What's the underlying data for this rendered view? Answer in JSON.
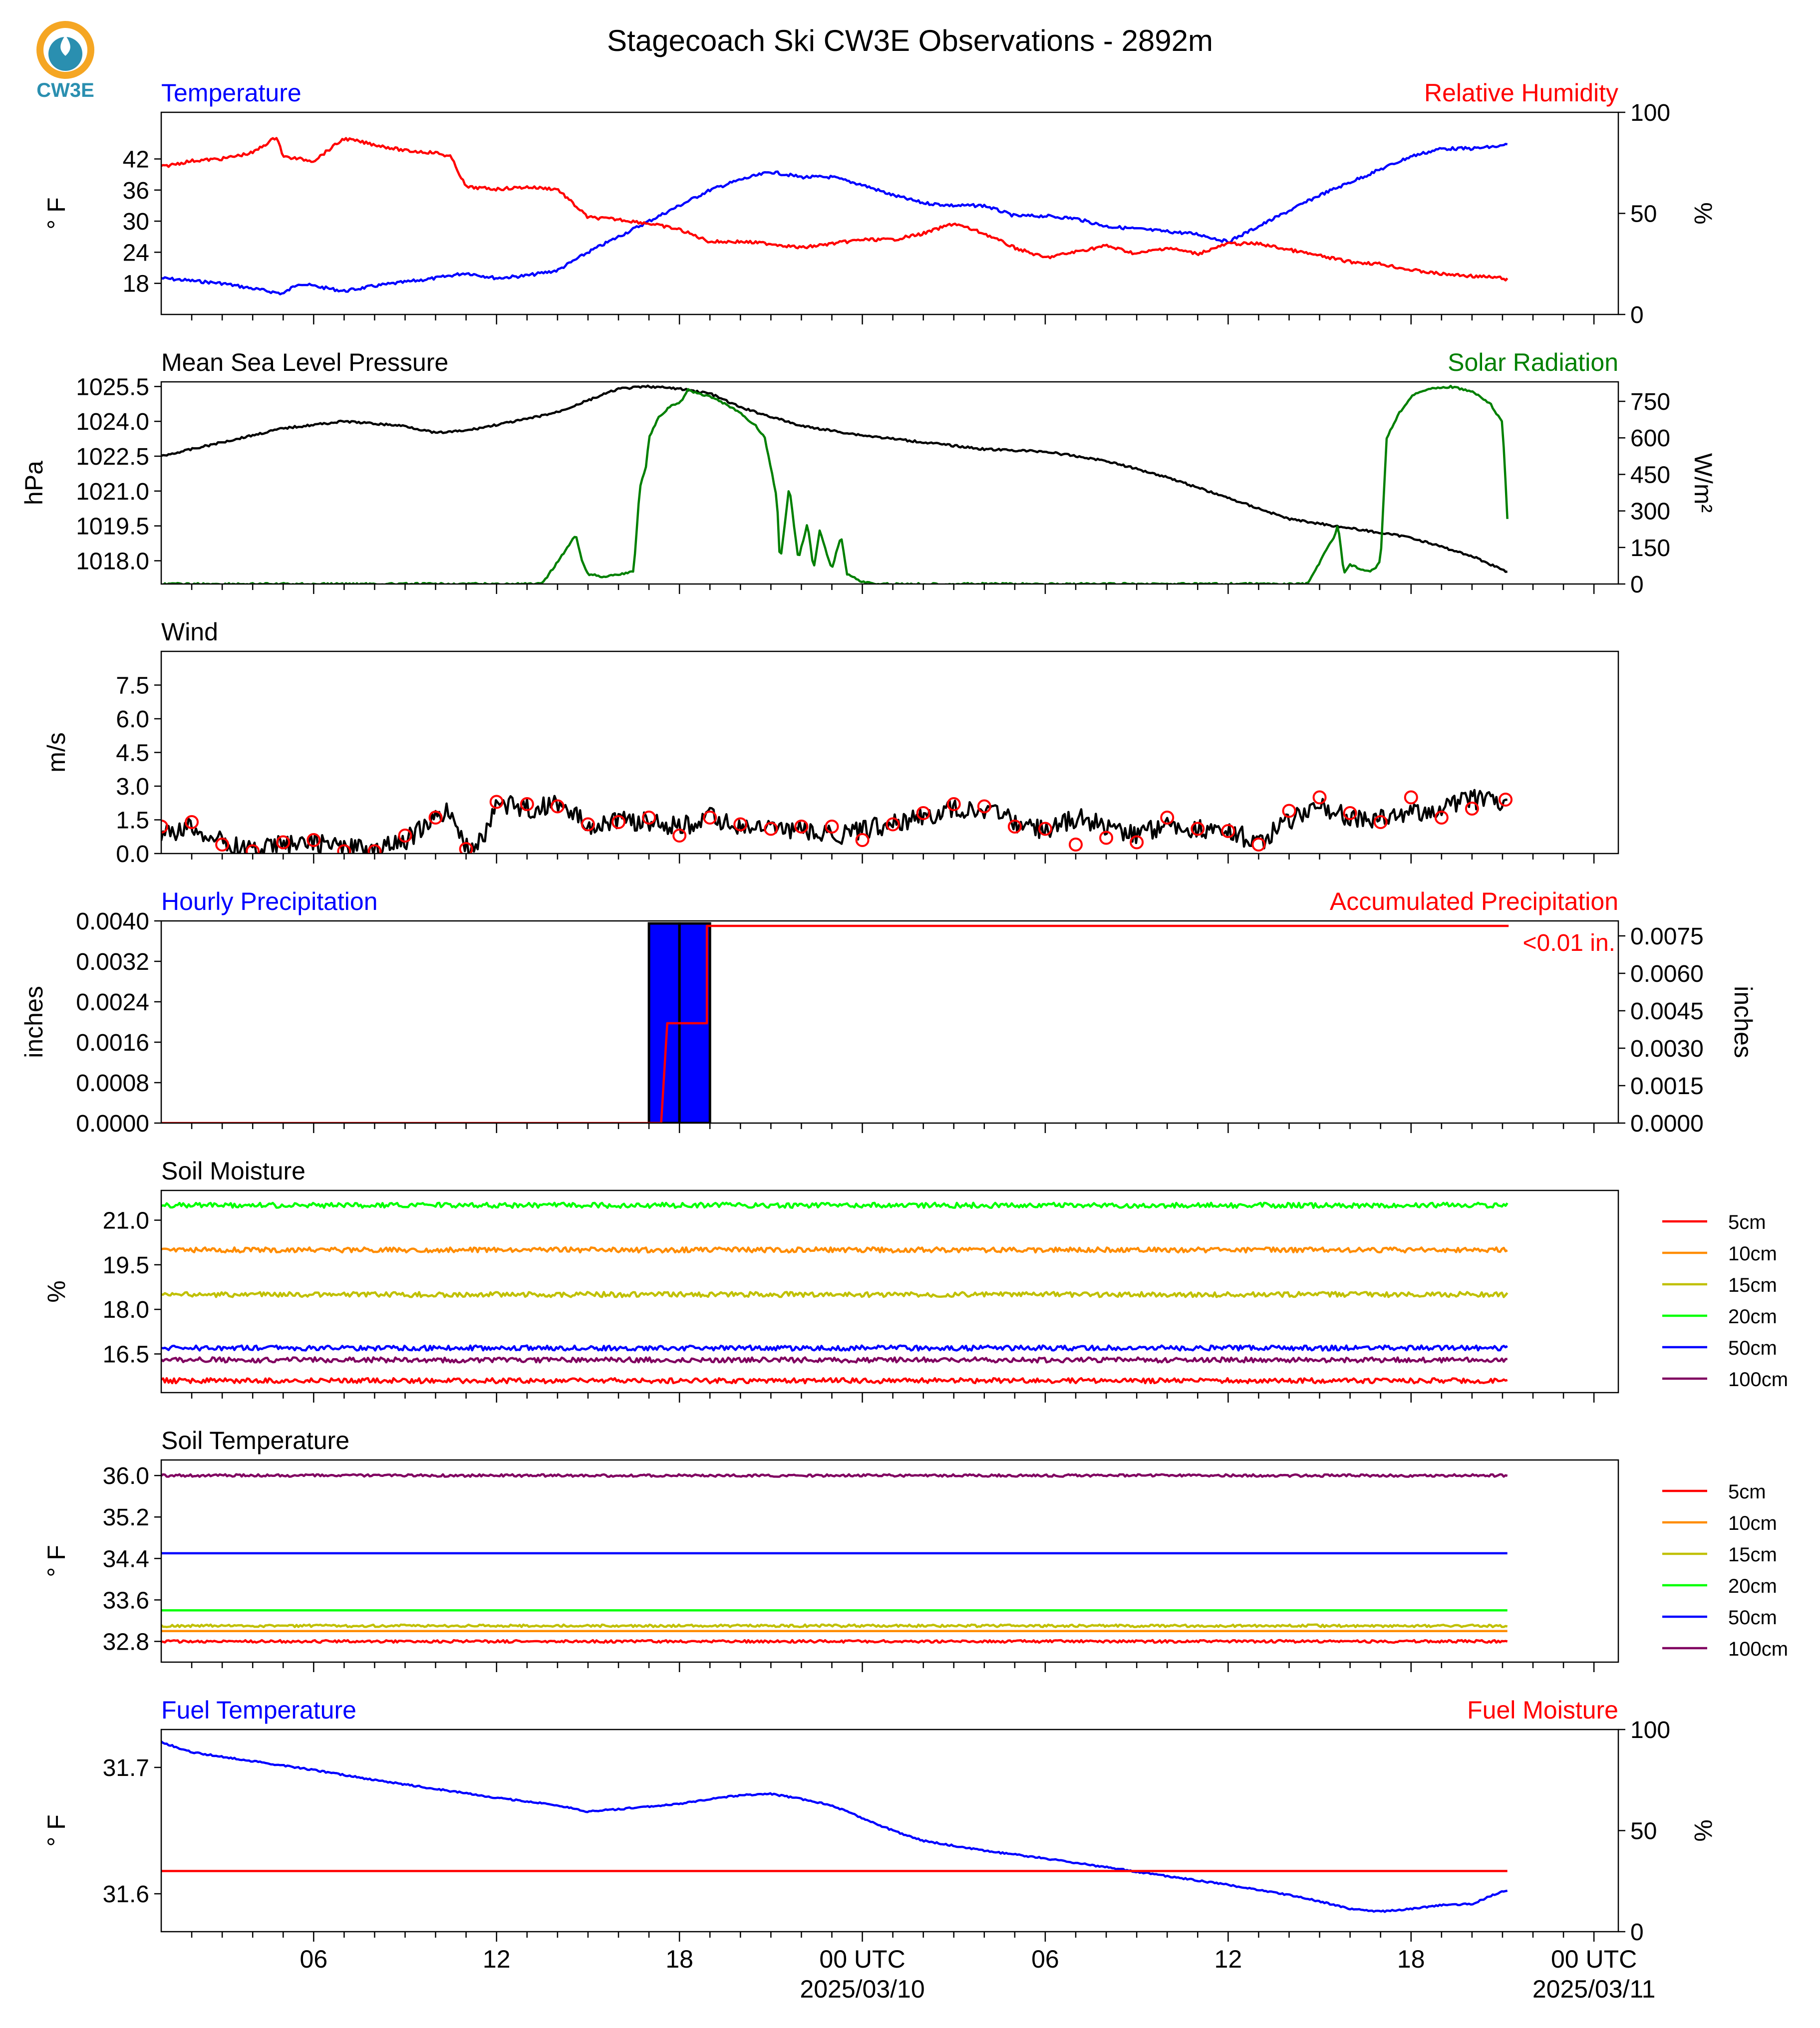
{
  "header": {
    "title": "Stagecoach Ski CW3E Observations - 2892m",
    "logo_text": "CW3E"
  },
  "colors": {
    "temperature": "#0000ff",
    "humidity": "#ff0000",
    "pressure": "#000000",
    "solar": "#008000",
    "wind": "#000000",
    "gust_marker": "#ff0000",
    "precip_bar": "#0000ff",
    "precip_accum": "#ff0000",
    "soil_5cm": "#ff0000",
    "soil_10cm": "#ff8c00",
    "soil_15cm": "#c0c000",
    "soil_20cm": "#00ff00",
    "soil_50cm": "#0000ff",
    "soil_100cm": "#800060",
    "logo": "#2a8fb0",
    "logo_sun": "#f5a623"
  },
  "x_axis": {
    "tick_labels": [
      {
        "hour": 6,
        "label": "06"
      },
      {
        "hour": 12,
        "label": "12"
      },
      {
        "hour": 18,
        "label": "18"
      },
      {
        "hour": 24,
        "label": "00 UTC",
        "sub": "2025/03/10"
      },
      {
        "hour": 30,
        "label": "06"
      },
      {
        "hour": 36,
        "label": "12"
      },
      {
        "hour": 42,
        "label": "18"
      },
      {
        "hour": 48,
        "label": "00 UTC",
        "sub": "2025/03/11"
      }
    ],
    "range_hours": [
      1,
      48.8
    ],
    "data_end_hour": 45.2
  },
  "legend_labels": [
    "5cm",
    "10cm",
    "15cm",
    "20cm",
    "50cm",
    "100cm"
  ],
  "chart_data": [
    {
      "type": "line",
      "title_left": "Temperature",
      "title_right": "Relative Humidity",
      "ylabel": "° F",
      "ylabel_right": "%",
      "ylim": [
        12,
        51
      ],
      "yticks": [
        "18",
        "24",
        "30",
        "36",
        "42"
      ],
      "ylim_right": [
        0,
        100
      ],
      "yticks_right": [
        "0",
        "50",
        "100"
      ],
      "series": [
        {
          "axis": "left",
          "color_key": "temperature",
          "x": [
            1,
            3,
            5,
            5.5,
            7,
            8,
            10,
            11,
            12,
            13,
            14,
            15,
            16,
            17,
            18,
            19,
            20,
            21,
            22,
            23,
            24,
            25,
            26,
            27,
            28,
            29,
            30,
            31,
            32,
            33,
            34,
            35,
            36,
            37,
            38,
            39,
            40,
            41,
            42,
            43,
            44,
            45,
            45.2
          ],
          "y": [
            19,
            18,
            16,
            18,
            16.5,
            17.5,
            19,
            20,
            19,
            19.5,
            20.5,
            24,
            27,
            30,
            33,
            36,
            38,
            39.5,
            38.5,
            38.5,
            37,
            35,
            33.5,
            33,
            33,
            31,
            31,
            30.5,
            29,
            28.5,
            28,
            27.5,
            26,
            29,
            32,
            35,
            37.5,
            40,
            42.5,
            44,
            44,
            44.5,
            45
          ]
        },
        {
          "axis": "right",
          "color_key": "humidity",
          "x": [
            1,
            2,
            3,
            4,
            4.8,
            5,
            6,
            7,
            8,
            9,
            10,
            10.5,
            11,
            12,
            13,
            14,
            15,
            16,
            17,
            18,
            19,
            20,
            21,
            22,
            23,
            24,
            25,
            26,
            27,
            28,
            29,
            30,
            31,
            32,
            33,
            34,
            35,
            36,
            37,
            38,
            39,
            40,
            41,
            42,
            43,
            44,
            45,
            45.2
          ],
          "y": [
            73,
            76,
            77,
            80,
            88,
            78,
            76,
            87,
            84,
            81,
            80,
            78,
            63,
            62,
            63,
            62,
            48,
            47,
            45,
            42,
            36,
            36,
            35,
            33,
            35,
            37,
            37,
            40,
            45,
            40,
            33,
            28,
            31,
            34,
            30,
            33,
            30,
            35,
            35,
            32,
            29,
            26,
            25,
            22,
            20,
            19,
            18,
            17
          ]
        }
      ]
    },
    {
      "type": "line",
      "title_left": "Mean Sea Level Pressure",
      "title_right": "Solar Radiation",
      "ylabel": "hPa",
      "ylabel_right": "W/m²",
      "ylim": [
        1017.0,
        1025.7
      ],
      "yticks": [
        "1018.0",
        "1019.5",
        "1021.0",
        "1022.5",
        "1024.0",
        "1025.5"
      ],
      "ylim_right": [
        0,
        830
      ],
      "yticks_right": [
        "0",
        "150",
        "300",
        "450",
        "600",
        "750"
      ],
      "series": [
        {
          "axis": "left",
          "color_key": "pressure",
          "x": [
            1,
            3,
            5,
            7,
            9,
            10,
            11,
            13,
            14,
            15,
            16,
            17,
            18,
            19,
            20,
            21,
            22,
            24,
            26,
            28,
            30,
            32,
            34,
            36,
            38,
            40,
            42,
            44,
            45.2
          ],
          "y": [
            1022.5,
            1023.1,
            1023.7,
            1024.0,
            1023.8,
            1023.5,
            1023.6,
            1024.1,
            1024.4,
            1024.9,
            1025.4,
            1025.5,
            1025.4,
            1025.2,
            1024.6,
            1024.2,
            1023.8,
            1023.4,
            1023.1,
            1022.8,
            1022.7,
            1022.3,
            1021.6,
            1020.7,
            1019.8,
            1019.4,
            1019.0,
            1018.2,
            1017.5
          ]
        },
        {
          "axis": "right",
          "color_key": "solar",
          "x": [
            1,
            13.5,
            14.6,
            14.8,
            15,
            15.5,
            16,
            16.5,
            16.7,
            16.9,
            17,
            17.3,
            17.7,
            18,
            18.3,
            18.6,
            19,
            19.5,
            20,
            20.5,
            20.8,
            21.2,
            21.3,
            21.6,
            21.9,
            22.2,
            22.4,
            22.6,
            23,
            23.3,
            23.5,
            24,
            24.4,
            24.7,
            38.6,
            39.5,
            39.6,
            39.8,
            40,
            40.5,
            40.8,
            41,
            41.2,
            41.6,
            42,
            42.5,
            43.3,
            44,
            44.6,
            45,
            45.1,
            45.2
          ],
          "y": [
            0,
            0,
            200,
            100,
            40,
            30,
            40,
            50,
            400,
            480,
            600,
            680,
            730,
            740,
            800,
            780,
            770,
            740,
            700,
            650,
            600,
            350,
            80,
            400,
            100,
            250,
            60,
            220,
            60,
            200,
            40,
            10,
            0,
            0,
            0,
            200,
            250,
            40,
            80,
            50,
            60,
            100,
            600,
            700,
            770,
            800,
            810,
            790,
            740,
            660,
            420,
            160
          ]
        }
      ]
    },
    {
      "type": "line",
      "title_left": "Wind",
      "ylabel": "m/s",
      "ylim": [
        0,
        9.0
      ],
      "yticks": [
        "0.0",
        "1.5",
        "3.0",
        "4.5",
        "6.0",
        "7.5"
      ],
      "series": [
        {
          "color_key": "wind",
          "x": [
            1,
            2,
            3,
            4,
            5,
            6,
            7,
            8,
            9,
            10,
            10.5,
            11,
            11.5,
            12,
            13,
            14,
            15,
            16,
            17,
            18,
            19,
            20,
            21,
            22,
            23,
            24,
            25,
            26,
            27,
            28,
            29,
            30,
            31,
            32,
            33,
            34,
            35,
            36,
            37,
            38,
            39,
            40,
            41,
            42,
            43,
            44,
            45,
            45.2
          ],
          "y": [
            0.8,
            1.2,
            0.5,
            0.2,
            0.4,
            0.5,
            0.3,
            0.1,
            0.6,
            1.5,
            2.0,
            0.2,
            0.6,
            2.2,
            2.0,
            2.2,
            1.3,
            1.5,
            1.4,
            1.2,
            1.6,
            1.2,
            1.1,
            1.0,
            0.8,
            1.0,
            1.4,
            1.6,
            2.0,
            2.0,
            1.4,
            1.0,
            1.6,
            1.2,
            0.9,
            1.3,
            1.1,
            1.0,
            0.5,
            1.4,
            2.2,
            1.6,
            1.5,
            1.8,
            2.0,
            2.4,
            2.2,
            2.0
          ]
        },
        {
          "color_key": "gust_marker",
          "marker": "circle",
          "x": [
            1,
            2,
            3,
            4,
            5,
            6,
            7,
            8,
            9,
            10,
            11,
            12,
            13,
            14,
            15,
            16,
            17,
            18,
            19,
            20,
            21,
            22,
            23,
            24,
            25,
            26,
            27,
            28,
            29,
            30,
            31,
            32,
            33,
            34,
            35,
            36,
            37,
            38,
            39,
            40,
            41,
            42,
            43,
            44,
            45.1
          ],
          "y": [
            1.2,
            1.4,
            0.4,
            0.1,
            0.5,
            0.6,
            0.1,
            0.1,
            0.8,
            1.6,
            0.2,
            2.3,
            2.2,
            2.1,
            1.3,
            1.4,
            1.6,
            0.8,
            1.6,
            1.3,
            1.1,
            1.2,
            1.2,
            0.6,
            1.3,
            1.8,
            2.2,
            2.1,
            1.2,
            1.1,
            0.4,
            0.7,
            0.5,
            1.6,
            1.1,
            1.0,
            0.4,
            1.9,
            2.5,
            1.8,
            1.4,
            2.5,
            1.6,
            2.0,
            2.4
          ]
        }
      ]
    },
    {
      "type": "bar",
      "title_left": "Hourly Precipitation",
      "title_right": "Accumulated Precipitation",
      "annotation": "<0.01 in.",
      "ylabel": "inches",
      "ylabel_right": "inches",
      "ylim": [
        0,
        0.004
      ],
      "yticks": [
        "0.0000",
        "0.0008",
        "0.0016",
        "0.0024",
        "0.0032",
        "0.0040"
      ],
      "ylim_right": [
        0,
        0.0081
      ],
      "yticks_right": [
        "0.0000",
        "0.0015",
        "0.0030",
        "0.0045",
        "0.0060",
        "0.0075"
      ],
      "bars": [
        {
          "start": 17,
          "end": 18,
          "value": 0.00395
        },
        {
          "start": 18,
          "end": 19,
          "value": 0.00395
        }
      ],
      "series": [
        {
          "axis": "right",
          "color_key": "precip_accum",
          "step": true,
          "x": [
            1,
            17.4,
            17.4,
            17.6,
            17.6,
            18.9,
            18.9,
            45.2
          ],
          "y": [
            0,
            0,
            0.0,
            0.004,
            0.004,
            0.004,
            0.0079,
            0.0079
          ]
        }
      ]
    },
    {
      "type": "line",
      "title_left": "Soil Moisture",
      "ylabel": "%",
      "ylim": [
        15.2,
        22.0
      ],
      "yticks": [
        "16.5",
        "18.0",
        "19.5",
        "21.0"
      ],
      "series": [
        {
          "name": "5cm",
          "color_key": "soil_5cm",
          "x": [
            1,
            45.2
          ],
          "y": [
            15.6,
            15.6
          ]
        },
        {
          "name": "10cm",
          "color_key": "soil_10cm",
          "x": [
            1,
            45.2
          ],
          "y": [
            20.0,
            20.0
          ]
        },
        {
          "name": "15cm",
          "color_key": "soil_15cm",
          "x": [
            1,
            45.2
          ],
          "y": [
            18.5,
            18.5
          ]
        },
        {
          "name": "20cm",
          "color_key": "soil_20cm",
          "x": [
            1,
            45.2
          ],
          "y": [
            21.5,
            21.5
          ]
        },
        {
          "name": "50cm",
          "color_key": "soil_50cm",
          "x": [
            1,
            45.2
          ],
          "y": [
            16.7,
            16.7
          ]
        },
        {
          "name": "100cm",
          "color_key": "soil_100cm",
          "x": [
            1,
            45.2
          ],
          "y": [
            16.3,
            16.3
          ]
        }
      ]
    },
    {
      "type": "line",
      "title_left": "Soil Temperature",
      "ylabel": "° F",
      "ylim": [
        32.4,
        36.3
      ],
      "yticks": [
        "32.8",
        "33.6",
        "34.4",
        "35.2",
        "36.0"
      ],
      "series": [
        {
          "name": "5cm",
          "color_key": "soil_5cm",
          "x": [
            1,
            45.2
          ],
          "y": [
            32.8,
            32.8
          ]
        },
        {
          "name": "10cm",
          "color_key": "soil_10cm",
          "x": [
            1,
            45.2
          ],
          "y": [
            33.0,
            33.0
          ]
        },
        {
          "name": "15cm",
          "color_key": "soil_15cm",
          "x": [
            1,
            45.2
          ],
          "y": [
            33.1,
            33.1
          ]
        },
        {
          "name": "20cm",
          "color_key": "soil_20cm",
          "x": [
            1,
            45.2
          ],
          "y": [
            33.4,
            33.4
          ]
        },
        {
          "name": "50cm",
          "color_key": "soil_50cm",
          "x": [
            1,
            45.2
          ],
          "y": [
            34.5,
            34.5
          ]
        },
        {
          "name": "100cm",
          "color_key": "soil_100cm",
          "x": [
            1,
            45.2
          ],
          "y": [
            36.0,
            36.0
          ]
        }
      ]
    },
    {
      "type": "line",
      "title_left": "Fuel Temperature",
      "title_right": "Fuel Moisture",
      "ylabel": "° F",
      "ylabel_right": "%",
      "ylim": [
        31.57,
        31.73
      ],
      "yticks": [
        "31.6",
        "31.7"
      ],
      "ylim_right": [
        0,
        100
      ],
      "yticks_right": [
        "0",
        "50",
        "100"
      ],
      "series": [
        {
          "axis": "left",
          "color_key": "temperature",
          "x": [
            1,
            2,
            4,
            6,
            8,
            10,
            12,
            14,
            15,
            16,
            18,
            19,
            20,
            21,
            22,
            23,
            24,
            25,
            26,
            28,
            30,
            32,
            34,
            36,
            38,
            39,
            40,
            41,
            42,
            43,
            44,
            45,
            45.2
          ],
          "y": [
            31.72,
            31.712,
            31.705,
            31.698,
            31.69,
            31.683,
            31.676,
            31.67,
            31.665,
            31.667,
            31.671,
            31.675,
            31.678,
            31.679,
            31.675,
            31.67,
            31.66,
            31.65,
            31.642,
            31.634,
            31.628,
            31.621,
            31.614,
            31.607,
            31.599,
            31.594,
            31.588,
            31.586,
            31.588,
            31.591,
            31.592,
            31.602,
            31.603
          ]
        },
        {
          "axis": "right",
          "color_key": "humidity",
          "x": [
            1,
            45.2
          ],
          "y": [
            30,
            30
          ]
        }
      ]
    }
  ]
}
